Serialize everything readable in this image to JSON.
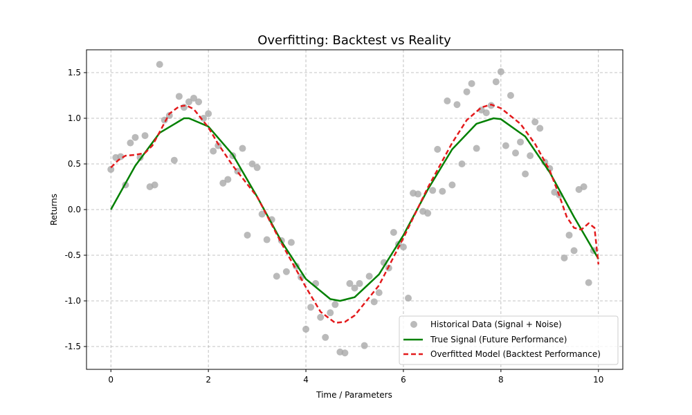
{
  "chart_data": {
    "type": "line",
    "title": "Overfitting: Backtest vs Reality",
    "xlabel": "Time / Parameters",
    "ylabel": "Returns",
    "xlim": [
      -0.5,
      10.5
    ],
    "ylim": [
      -1.75,
      1.75
    ],
    "x_ticks": [
      0,
      2,
      4,
      6,
      8,
      10
    ],
    "x_tick_labels": [
      "0",
      "2",
      "4",
      "6",
      "8",
      "10"
    ],
    "y_ticks": [
      -1.5,
      -1.0,
      -0.5,
      0.0,
      0.5,
      1.0,
      1.5
    ],
    "y_tick_labels": [
      "-1.5",
      "-1.0",
      "-0.5",
      "0.0",
      "0.5",
      "1.0",
      "1.5"
    ],
    "grid": true,
    "legend_position": "lower-right",
    "series": [
      {
        "name": "Historical Data (Signal + Noise)",
        "kind": "scatter",
        "color": "#a9a9a9",
        "points": [
          [
            0.0,
            0.44
          ],
          [
            0.1,
            0.57
          ],
          [
            0.2,
            0.58
          ],
          [
            0.3,
            0.27
          ],
          [
            0.4,
            0.73
          ],
          [
            0.5,
            0.79
          ],
          [
            0.6,
            0.57
          ],
          [
            0.7,
            0.81
          ],
          [
            0.8,
            0.25
          ],
          [
            0.9,
            0.27
          ],
          [
            1.0,
            1.59
          ],
          [
            1.1,
            0.98
          ],
          [
            1.2,
            1.03
          ],
          [
            1.3,
            0.54
          ],
          [
            1.4,
            1.24
          ],
          [
            1.5,
            1.12
          ],
          [
            1.6,
            1.18
          ],
          [
            1.7,
            1.22
          ],
          [
            1.8,
            1.18
          ],
          [
            1.9,
            1.0
          ],
          [
            2.0,
            1.05
          ],
          [
            2.1,
            0.64
          ],
          [
            2.2,
            0.7
          ],
          [
            2.3,
            0.29
          ],
          [
            2.4,
            0.33
          ],
          [
            2.5,
            0.59
          ],
          [
            2.6,
            0.42
          ],
          [
            2.7,
            0.67
          ],
          [
            2.8,
            -0.28
          ],
          [
            2.9,
            0.5
          ],
          [
            3.0,
            0.46
          ],
          [
            3.1,
            -0.05
          ],
          [
            3.2,
            -0.33
          ],
          [
            3.3,
            -0.11
          ],
          [
            3.4,
            -0.73
          ],
          [
            3.5,
            -0.34
          ],
          [
            3.6,
            -0.68
          ],
          [
            3.7,
            -0.36
          ],
          [
            3.8,
            -0.62
          ],
          [
            3.9,
            -0.74
          ],
          [
            4.0,
            -1.31
          ],
          [
            4.1,
            -1.07
          ],
          [
            4.2,
            -0.81
          ],
          [
            4.3,
            -1.18
          ],
          [
            4.4,
            -1.4
          ],
          [
            4.5,
            -1.13
          ],
          [
            4.6,
            -1.04
          ],
          [
            4.7,
            -1.56
          ],
          [
            4.8,
            -1.57
          ],
          [
            4.9,
            -0.81
          ],
          [
            5.0,
            -0.86
          ],
          [
            5.1,
            -0.81
          ],
          [
            5.2,
            -1.49
          ],
          [
            5.3,
            -0.73
          ],
          [
            5.4,
            -1.01
          ],
          [
            5.5,
            -0.91
          ],
          [
            5.6,
            -0.58
          ],
          [
            5.7,
            -0.64
          ],
          [
            5.8,
            -0.25
          ],
          [
            5.9,
            -0.38
          ],
          [
            6.0,
            -0.41
          ],
          [
            6.1,
            -0.97
          ],
          [
            6.2,
            0.18
          ],
          [
            6.3,
            0.17
          ],
          [
            6.4,
            -0.02
          ],
          [
            6.5,
            -0.04
          ],
          [
            6.6,
            0.21
          ],
          [
            6.7,
            0.66
          ],
          [
            6.8,
            0.2
          ],
          [
            6.9,
            1.19
          ],
          [
            7.0,
            0.27
          ],
          [
            7.1,
            1.15
          ],
          [
            7.2,
            0.5
          ],
          [
            7.3,
            1.29
          ],
          [
            7.4,
            1.38
          ],
          [
            7.5,
            0.67
          ],
          [
            7.6,
            1.09
          ],
          [
            7.7,
            1.06
          ],
          [
            7.8,
            1.14
          ],
          [
            7.9,
            1.4
          ],
          [
            8.0,
            1.51
          ],
          [
            8.1,
            0.7
          ],
          [
            8.2,
            1.25
          ],
          [
            8.3,
            0.62
          ],
          [
            8.4,
            0.74
          ],
          [
            8.5,
            0.39
          ],
          [
            8.6,
            0.59
          ],
          [
            8.7,
            0.96
          ],
          [
            8.8,
            0.89
          ],
          [
            8.9,
            0.52
          ],
          [
            9.0,
            0.45
          ],
          [
            9.1,
            0.19
          ],
          [
            9.2,
            0.16
          ],
          [
            9.3,
            -0.53
          ],
          [
            9.4,
            -0.28
          ],
          [
            9.5,
            -0.45
          ],
          [
            9.6,
            0.22
          ],
          [
            9.7,
            0.25
          ],
          [
            9.8,
            -0.8
          ],
          [
            9.9,
            -0.45
          ]
        ]
      },
      {
        "name": "True Signal (Future Performance)",
        "kind": "line",
        "color": "#008000",
        "dash": "solid",
        "points": [
          [
            0.0,
            0.0
          ],
          [
            0.5,
            0.48
          ],
          [
            1.0,
            0.84
          ],
          [
            1.5,
            1.0
          ],
          [
            1.6,
            1.0
          ],
          [
            2.0,
            0.91
          ],
          [
            2.5,
            0.6
          ],
          [
            3.0,
            0.14
          ],
          [
            3.5,
            -0.35
          ],
          [
            4.0,
            -0.76
          ],
          [
            4.5,
            -0.98
          ],
          [
            4.7,
            -1.0
          ],
          [
            5.0,
            -0.96
          ],
          [
            5.5,
            -0.71
          ],
          [
            6.0,
            -0.28
          ],
          [
            6.5,
            0.22
          ],
          [
            7.0,
            0.66
          ],
          [
            7.5,
            0.94
          ],
          [
            7.85,
            1.0
          ],
          [
            8.0,
            0.99
          ],
          [
            8.5,
            0.8
          ],
          [
            9.0,
            0.41
          ],
          [
            9.5,
            -0.08
          ],
          [
            10.0,
            -0.54
          ]
        ]
      },
      {
        "name": "Overfitted Model (Backtest Performance)",
        "kind": "line",
        "color": "#e31a1c",
        "dash": "dashed",
        "points": [
          [
            0.0,
            0.46
          ],
          [
            0.15,
            0.54
          ],
          [
            0.3,
            0.59
          ],
          [
            0.5,
            0.6
          ],
          [
            0.7,
            0.62
          ],
          [
            0.85,
            0.7
          ],
          [
            1.0,
            0.85
          ],
          [
            1.2,
            1.05
          ],
          [
            1.4,
            1.13
          ],
          [
            1.55,
            1.14
          ],
          [
            1.7,
            1.1
          ],
          [
            1.85,
            1.0
          ],
          [
            2.0,
            0.9
          ],
          [
            2.2,
            0.72
          ],
          [
            2.5,
            0.48
          ],
          [
            3.0,
            0.14
          ],
          [
            3.5,
            -0.37
          ],
          [
            4.0,
            -0.85
          ],
          [
            4.3,
            -1.12
          ],
          [
            4.6,
            -1.24
          ],
          [
            4.8,
            -1.23
          ],
          [
            5.0,
            -1.16
          ],
          [
            5.5,
            -0.83
          ],
          [
            6.0,
            -0.31
          ],
          [
            6.5,
            0.24
          ],
          [
            7.0,
            0.73
          ],
          [
            7.3,
            0.98
          ],
          [
            7.6,
            1.12
          ],
          [
            7.8,
            1.15
          ],
          [
            8.0,
            1.11
          ],
          [
            8.4,
            0.94
          ],
          [
            8.7,
            0.72
          ],
          [
            9.0,
            0.43
          ],
          [
            9.2,
            0.15
          ],
          [
            9.35,
            -0.08
          ],
          [
            9.5,
            -0.2
          ],
          [
            9.65,
            -0.22
          ],
          [
            9.8,
            -0.15
          ],
          [
            9.92,
            -0.2
          ],
          [
            10.0,
            -0.6
          ]
        ]
      }
    ]
  }
}
